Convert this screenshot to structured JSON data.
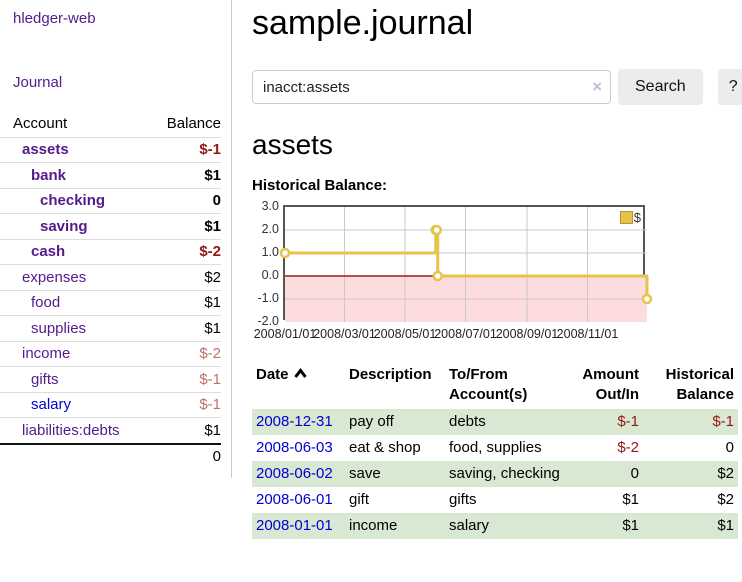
{
  "sidebar": {
    "app_title": "hledger-web",
    "journal_label": "Journal",
    "table": {
      "account_header": "Account",
      "balance_header": "Balance"
    },
    "accounts": [
      {
        "name": "assets",
        "balance": "$-1",
        "depth": 1,
        "bold": true,
        "link_color": "purple",
        "balance_tone": "neg-dark"
      },
      {
        "name": "bank",
        "balance": "$1",
        "depth": 2,
        "bold": true,
        "link_color": "purple",
        "balance_tone": "plain"
      },
      {
        "name": "checking",
        "balance": "0",
        "depth": 3,
        "bold": true,
        "link_color": "purple",
        "balance_tone": "plain"
      },
      {
        "name": "saving",
        "balance": "$1",
        "depth": 3,
        "bold": true,
        "link_color": "purple",
        "balance_tone": "plain"
      },
      {
        "name": "cash",
        "balance": "$-2",
        "depth": 2,
        "bold": true,
        "link_color": "purple",
        "balance_tone": "neg-dark"
      },
      {
        "name": "expenses",
        "balance": "$2",
        "depth": 1,
        "bold": false,
        "link_color": "purple",
        "balance_tone": "plain"
      },
      {
        "name": "food",
        "balance": "$1",
        "depth": 2,
        "bold": false,
        "link_color": "purple",
        "balance_tone": "plain"
      },
      {
        "name": "supplies",
        "balance": "$1",
        "depth": 2,
        "bold": false,
        "link_color": "purple",
        "balance_tone": "plain"
      },
      {
        "name": "income",
        "balance": "$-2",
        "depth": 1,
        "bold": false,
        "link_color": "purple",
        "balance_tone": "neg-rose"
      },
      {
        "name": "gifts",
        "balance": "$-1",
        "depth": 2,
        "bold": false,
        "link_color": "purple",
        "balance_tone": "neg-rose"
      },
      {
        "name": "salary",
        "balance": "$-1",
        "depth": 2,
        "bold": false,
        "link_color": "blue",
        "balance_tone": "neg-rose"
      },
      {
        "name": "liabilities:debts",
        "balance": "$1",
        "depth": 1,
        "bold": false,
        "link_color": "purple",
        "balance_tone": "plain"
      }
    ],
    "total": "0"
  },
  "main": {
    "title": "sample.journal",
    "search": {
      "value": "inacct:assets",
      "clear_icon": "×",
      "button_label": "Search",
      "help_label": "?"
    },
    "account_heading": "assets",
    "chart_label": "Historical Balance:"
  },
  "chart_data": {
    "type": "line",
    "step": true,
    "title": "Historical Balance",
    "series": [
      {
        "name": "$",
        "color": "#e6c34a",
        "points": [
          [
            "2008-01-01",
            1
          ],
          [
            "2008-06-01",
            2
          ],
          [
            "2008-06-02",
            2
          ],
          [
            "2008-06-03",
            0
          ],
          [
            "2008-12-31",
            -1
          ]
        ]
      }
    ],
    "x_range": [
      "2008-01-01",
      "2008-12-31"
    ],
    "x_ticks": [
      "2008/01/01",
      "2008/03/01",
      "2008/05/01",
      "2008/07/01",
      "2008/09/01",
      "2008/11/01"
    ],
    "y_ticks": [
      "3.0",
      "2.0",
      "1.0",
      "0.0",
      "-1.0",
      "-2.0"
    ],
    "ylim": [
      -2,
      3
    ],
    "grid": true,
    "gridline_color": "#c9c9c9",
    "negative_region_color": "#fcdcdc",
    "zero_line_color": "#a51616",
    "legend": {
      "label": "$",
      "position": "top-right"
    }
  },
  "register": {
    "headers": {
      "date": "Date",
      "description": "Description",
      "account": "To/From Account(s)",
      "amount": "Amount Out/In",
      "balance": "Historical Balance"
    },
    "rows": [
      {
        "date": "2008-12-31",
        "description": "pay off",
        "account": "debts",
        "amount": "$-1",
        "amount_negative": true,
        "balance": "$-1",
        "balance_negative": true,
        "shaded": true
      },
      {
        "date": "2008-06-03",
        "description": "eat & shop",
        "account": "food, supplies",
        "amount": "$-2",
        "amount_negative": true,
        "balance": "0",
        "balance_negative": false,
        "shaded": false
      },
      {
        "date": "2008-06-02",
        "description": "save",
        "account": "saving, checking",
        "amount": "0",
        "amount_negative": false,
        "balance": "$2",
        "balance_negative": false,
        "shaded": true
      },
      {
        "date": "2008-06-01",
        "description": "gift",
        "account": "gifts",
        "amount": "$1",
        "amount_negative": false,
        "balance": "$2",
        "balance_negative": false,
        "shaded": false
      },
      {
        "date": "2008-01-01",
        "description": "income",
        "account": "salary",
        "amount": "$1",
        "amount_negative": false,
        "balance": "$1",
        "balance_negative": false,
        "shaded": true
      }
    ]
  }
}
